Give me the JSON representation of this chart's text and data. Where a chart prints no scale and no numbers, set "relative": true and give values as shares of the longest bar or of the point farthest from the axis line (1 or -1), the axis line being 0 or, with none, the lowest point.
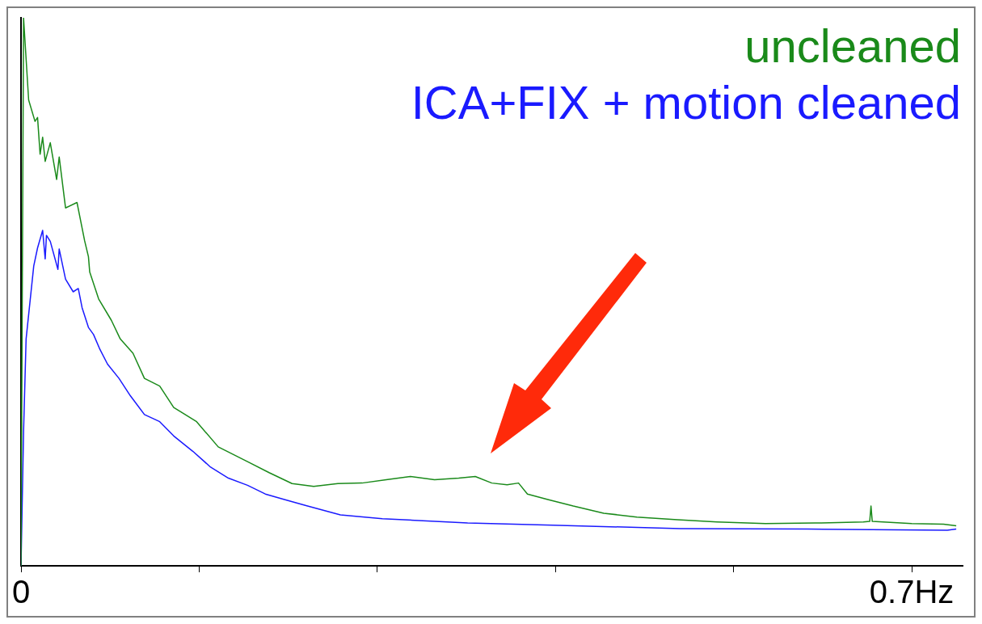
{
  "chart_data": {
    "type": "line",
    "relative": true,
    "legend": "top right",
    "marker": "none",
    "line_style": "solid",
    "grid": false,
    "xlim": [
      0,
      0.74
    ],
    "xticks": [
      0,
      {
        "value": 0.14,
        "label": null
      },
      {
        "value": 0.28,
        "label": null
      },
      {
        "value": 0.42,
        "label": null
      },
      {
        "value": 0.56,
        "label": null
      },
      {
        "value": 0.7,
        "label": "0.7Hz"
      }
    ],
    "series": [
      {
        "name": "uncleaned",
        "color": "#1a8a1a",
        "x": [
          0,
          0.002,
          0.006,
          0.011,
          0.013,
          0.015,
          0.017,
          0.019,
          0.023,
          0.028,
          0.03,
          0.035,
          0.044,
          0.05,
          0.053,
          0.054,
          0.061,
          0.071,
          0.078,
          0.088,
          0.097,
          0.109,
          0.12,
          0.138,
          0.155,
          0.178,
          0.195,
          0.213,
          0.23,
          0.249,
          0.268,
          0.287,
          0.306,
          0.325,
          0.344,
          0.357,
          0.37,
          0.382,
          0.391,
          0.398,
          0.414,
          0.434,
          0.458,
          0.484,
          0.516,
          0.547,
          0.585,
          0.624,
          0.662,
          0.667,
          0.668,
          0.669,
          0.7,
          0.725,
          0.735
        ],
        "values": [
          0,
          1,
          0.85,
          0.811,
          0.818,
          0.751,
          0.782,
          0.738,
          0.772,
          0.705,
          0.746,
          0.653,
          0.663,
          0.593,
          0.564,
          0.536,
          0.487,
          0.448,
          0.414,
          0.388,
          0.342,
          0.328,
          0.289,
          0.263,
          0.217,
          0.19,
          0.17,
          0.15,
          0.145,
          0.15,
          0.151,
          0.157,
          0.163,
          0.157,
          0.16,
          0.163,
          0.151,
          0.148,
          0.151,
          0.131,
          0.121,
          0.109,
          0.096,
          0.089,
          0.084,
          0.08,
          0.077,
          0.078,
          0.08,
          0.081,
          0.109,
          0.081,
          0.077,
          0.076,
          0.073
        ]
      },
      {
        "name": "ICA+FIX + motion cleaned",
        "color": "#1a1aff",
        "x": [
          0,
          0.002,
          0.004,
          0.01,
          0.013,
          0.017,
          0.019,
          0.02,
          0.023,
          0.029,
          0.03,
          0.035,
          0.041,
          0.045,
          0.048,
          0.053,
          0.057,
          0.062,
          0.068,
          0.077,
          0.086,
          0.097,
          0.109,
          0.12,
          0.135,
          0.149,
          0.163,
          0.178,
          0.192,
          0.207,
          0.224,
          0.251,
          0.284,
          0.351,
          0.418,
          0.518,
          0.618,
          0.728,
          0.735
        ],
        "values": [
          0,
          0.244,
          0.414,
          0.547,
          0.58,
          0.612,
          0.56,
          0.603,
          0.592,
          0.541,
          0.578,
          0.523,
          0.5,
          0.506,
          0.471,
          0.435,
          0.422,
          0.395,
          0.368,
          0.342,
          0.31,
          0.276,
          0.263,
          0.237,
          0.209,
          0.18,
          0.16,
          0.147,
          0.131,
          0.121,
          0.11,
          0.093,
          0.086,
          0.078,
          0.074,
          0.068,
          0.067,
          0.065,
          0.067
        ]
      }
    ]
  }
}
